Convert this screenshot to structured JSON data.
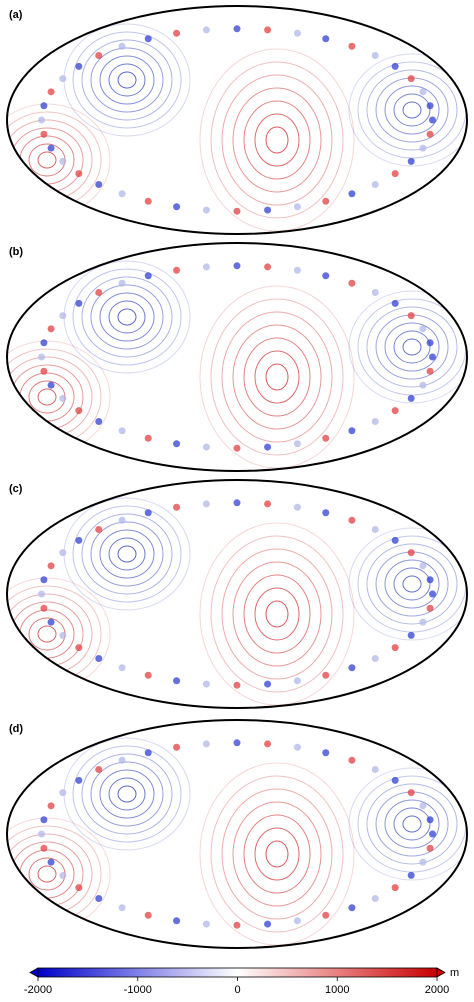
{
  "panels": [
    {
      "label": "(a)"
    },
    {
      "label": "(b)"
    },
    {
      "label": "(c)"
    },
    {
      "label": "(d)"
    }
  ],
  "colorbar": {
    "lim": [
      -2000,
      2000
    ],
    "ticks": [
      -2000,
      -1000,
      0,
      1000,
      2000
    ],
    "unit": "m"
  }
}
